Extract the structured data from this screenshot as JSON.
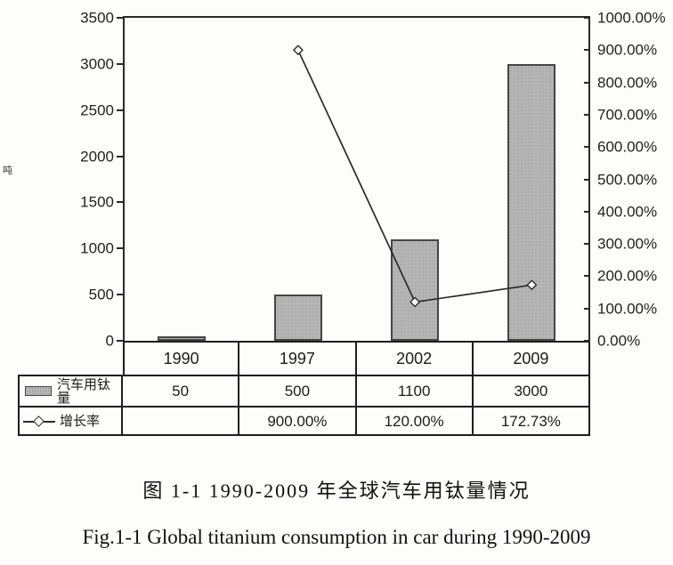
{
  "figure": {
    "caption_zh": "图 1-1 1990-2009 年全球汽车用钛量情况",
    "caption_en": "Fig.1-1 Global titanium consumption in car during 1990-2009"
  },
  "chart_data": {
    "type": "bar",
    "subtype": "bar-line-combo",
    "title": "",
    "categories": [
      "1990",
      "1997",
      "2002",
      "2009"
    ],
    "series": [
      {
        "name": "汽车用钛量",
        "type": "bar",
        "axis": "left",
        "values": [
          50,
          500,
          1100,
          3000
        ],
        "display": [
          "50",
          "500",
          "1100",
          "3000"
        ]
      },
      {
        "name": "增长率",
        "type": "line",
        "axis": "right",
        "values": [
          null,
          900.0,
          120.0,
          172.73
        ],
        "display": [
          "",
          "900.00%",
          "120.00%",
          "172.73%"
        ]
      }
    ],
    "left_axis": {
      "min": 0,
      "max": 3500,
      "step": 500,
      "unit_label": "吨",
      "tick_values": [
        0,
        500,
        1000,
        1500,
        2000,
        2500,
        3000,
        3500
      ],
      "tick_labels": [
        "0",
        "500",
        "1000",
        "1500",
        "2000",
        "2500",
        "3000",
        "3500"
      ]
    },
    "right_axis": {
      "min": 0,
      "max": 1000,
      "step": 100,
      "tick_values": [
        0,
        100,
        200,
        300,
        400,
        500,
        600,
        700,
        800,
        900,
        1000
      ],
      "tick_labels": [
        "0.00%",
        "100.00%",
        "200.00%",
        "300.00%",
        "400.00%",
        "500.00%",
        "600.00%",
        "700.00%",
        "800.00%",
        "900.00%",
        "1000.00%"
      ]
    },
    "grid": false,
    "legend_position": "table-left",
    "colors": {
      "bar_fill": "#b5b5b5",
      "bar_border": "#454545",
      "line": "#2b2b2b",
      "marker_fill": "#ffffff",
      "marker_border": "#2b2b2b",
      "border": "#1e1e1e",
      "background": "#fdfdfb"
    }
  }
}
